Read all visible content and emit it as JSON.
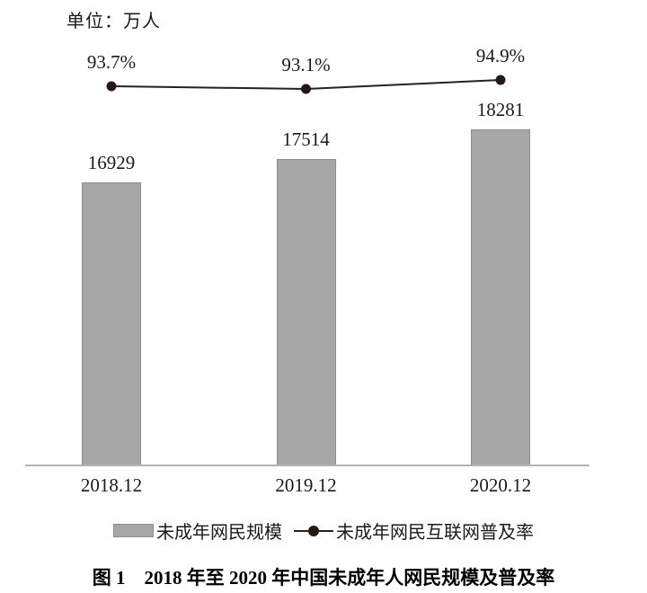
{
  "figure": {
    "unit_label": "单位：万人",
    "caption": "图 1　2018 年至 2020 年中国未成年人网民规模及普及率"
  },
  "chart_data": {
    "type": "bar",
    "subtype": "bar-line-combo",
    "title": "图 1　2018 年至 2020 年中国未成年人网民规模及普及率",
    "unit_label": "单位：万人",
    "categories": [
      "2018.12",
      "2019.12",
      "2020.12"
    ],
    "series": [
      {
        "name": "未成年网民规模",
        "type": "bar",
        "unit": "万人",
        "values": [
          16929,
          17514,
          18281
        ],
        "value_labels": [
          "16929",
          "17514",
          "18281"
        ],
        "color": "#a7a7a7",
        "border_color": "#8c8c8c"
      },
      {
        "name": "未成年网民互联网普及率",
        "type": "line",
        "unit": "%",
        "values": [
          93.7,
          93.1,
          94.9
        ],
        "value_labels": [
          "93.7%",
          "93.1%",
          "94.9%"
        ],
        "color": "#272120",
        "dot_color": "#231a17"
      }
    ],
    "legend_position": "bottom",
    "grid": false,
    "y_axis_shown": false,
    "axis_color": "#b3b3b3",
    "text_color": "#1a1a1a",
    "background_color": "#ffffff"
  }
}
